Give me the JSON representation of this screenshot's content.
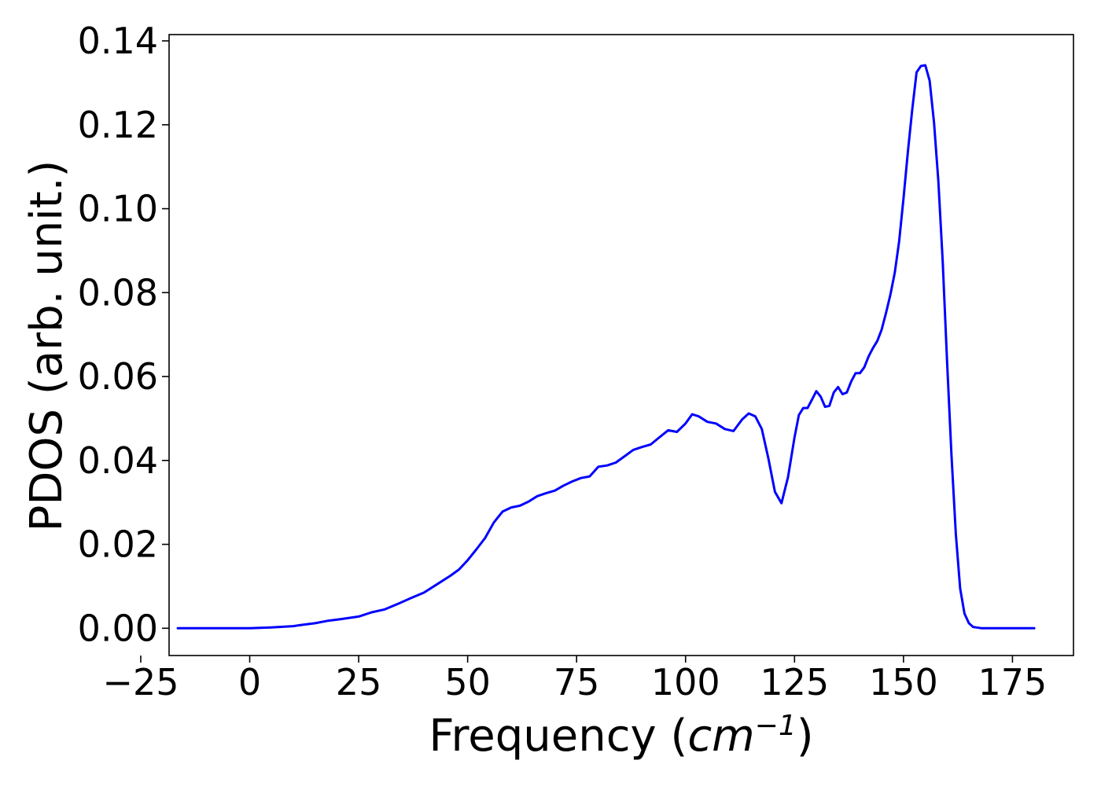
{
  "chart_data": {
    "type": "line",
    "title": "",
    "xlabel_main": "Frequency (",
    "xlabel_unit_base": "cm",
    "xlabel_unit_exp": "−1",
    "xlabel_close": ")",
    "ylabel": "PDOS (arb. unit.)",
    "xlim": [
      -18.5,
      189
    ],
    "ylim": [
      -0.0065,
      0.1415
    ],
    "xticks": [
      -25,
      0,
      25,
      50,
      75,
      100,
      125,
      150,
      175
    ],
    "xtick_labels": [
      "−25",
      "0",
      "25",
      "50",
      "75",
      "100",
      "125",
      "150",
      "175"
    ],
    "yticks": [
      0.0,
      0.02,
      0.04,
      0.06,
      0.08,
      0.1,
      0.12,
      0.14
    ],
    "ytick_labels": [
      "0.00",
      "0.02",
      "0.04",
      "0.06",
      "0.08",
      "0.10",
      "0.12",
      "0.14"
    ],
    "grid": false,
    "legend": "none",
    "series": [
      {
        "color": "#0000ff",
        "x": [
          -16.5,
          0,
          5,
          10,
          12,
          15,
          18,
          21,
          25,
          28,
          31,
          34,
          37,
          40,
          43,
          46,
          48,
          50,
          52,
          54,
          56,
          58,
          60,
          62,
          64,
          66,
          68,
          70,
          72,
          74,
          76,
          78,
          80,
          82,
          84,
          86,
          88,
          90,
          92,
          94,
          96,
          98,
          100,
          101.5,
          103,
          105,
          107,
          109,
          111,
          113,
          114.5,
          116,
          117.5,
          119,
          120.5,
          122,
          123.5,
          125,
          126,
          127,
          128,
          129,
          130,
          131,
          132,
          133,
          134,
          135,
          136,
          137,
          138,
          139,
          140,
          141,
          142,
          143,
          144,
          145,
          146,
          147,
          148,
          149,
          150,
          151,
          152,
          153,
          154,
          155,
          156,
          157,
          158,
          159,
          160,
          161,
          162,
          163,
          164,
          165,
          166,
          168,
          170,
          175,
          180
        ],
        "values": [
          0.0,
          0.0,
          0.0002,
          0.0005,
          0.0008,
          0.0012,
          0.0018,
          0.0022,
          0.0028,
          0.0038,
          0.0045,
          0.0058,
          0.0072,
          0.0085,
          0.0105,
          0.0125,
          0.014,
          0.0162,
          0.0188,
          0.0215,
          0.0252,
          0.0278,
          0.0288,
          0.0292,
          0.0302,
          0.0315,
          0.0322,
          0.0328,
          0.034,
          0.035,
          0.0358,
          0.0362,
          0.0385,
          0.0388,
          0.0395,
          0.041,
          0.0425,
          0.0432,
          0.0438,
          0.0455,
          0.0472,
          0.0468,
          0.0488,
          0.051,
          0.0505,
          0.0492,
          0.0488,
          0.0475,
          0.047,
          0.0498,
          0.0512,
          0.0505,
          0.0475,
          0.0405,
          0.0325,
          0.0298,
          0.036,
          0.0455,
          0.0508,
          0.0525,
          0.0525,
          0.0545,
          0.0565,
          0.0552,
          0.0528,
          0.053,
          0.0562,
          0.0575,
          0.0558,
          0.0562,
          0.0588,
          0.0608,
          0.0608,
          0.0622,
          0.0648,
          0.0668,
          0.0685,
          0.0712,
          0.0752,
          0.0795,
          0.0848,
          0.0922,
          0.1025,
          0.1135,
          0.1235,
          0.1325,
          0.134,
          0.1342,
          0.1305,
          0.1205,
          0.1065,
          0.0875,
          0.0635,
          0.0415,
          0.0225,
          0.0095,
          0.0035,
          0.0012,
          0.0003,
          0.0,
          0.0,
          0.0,
          0.0
        ]
      }
    ]
  }
}
